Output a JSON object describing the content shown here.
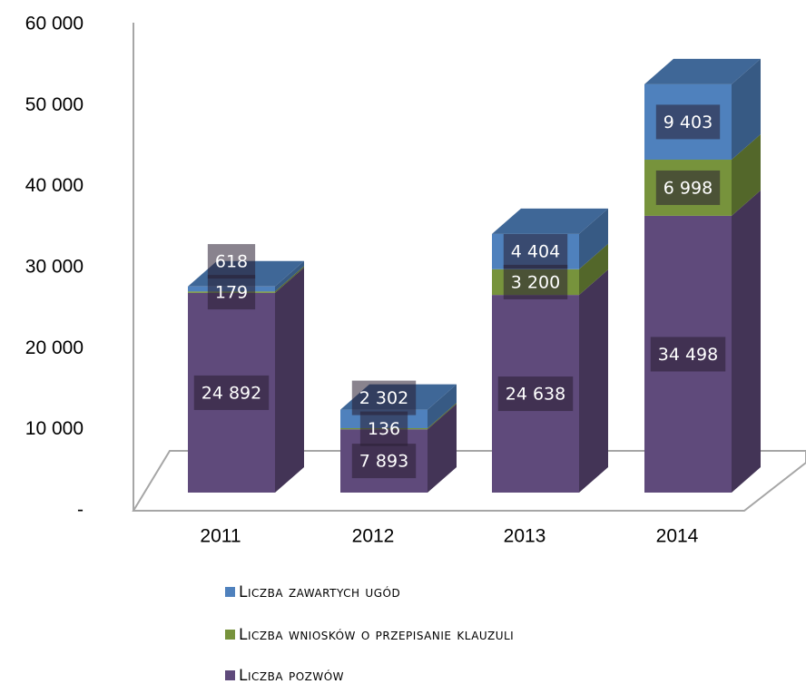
{
  "chart_data": {
    "type": "bar3d_stacked",
    "categories": [
      "2011",
      "2012",
      "2013",
      "2014"
    ],
    "series": [
      {
        "name": "Liczba pozwów",
        "color": "#5f4a7b",
        "values": [
          24892,
          7893,
          24638,
          34498
        ],
        "value_labels": [
          "24 892",
          "7 893",
          "24 638",
          "34 498"
        ]
      },
      {
        "name": "Liczba wniosków o przepisanie klauzuli",
        "color": "#77933c",
        "values": [
          179,
          136,
          3200,
          6998
        ],
        "value_labels": [
          "179",
          "136",
          "3 200",
          "6 998"
        ]
      },
      {
        "name": "Liczba zawartych ugód",
        "color": "#4f81bd",
        "values": [
          618,
          2302,
          4404,
          9403
        ],
        "value_labels": [
          "618",
          "2 302",
          "4 404",
          "9 403"
        ]
      }
    ],
    "ylim": [
      0,
      60000
    ],
    "yticks": [
      {
        "value": 0,
        "label": "-"
      },
      {
        "value": 10000,
        "label": "10 000"
      },
      {
        "value": 20000,
        "label": "20 000"
      },
      {
        "value": 30000,
        "label": "30 000"
      },
      {
        "value": 40000,
        "label": "40 000"
      },
      {
        "value": 50000,
        "label": "50 000"
      },
      {
        "value": 60000,
        "label": "60 000"
      }
    ]
  }
}
